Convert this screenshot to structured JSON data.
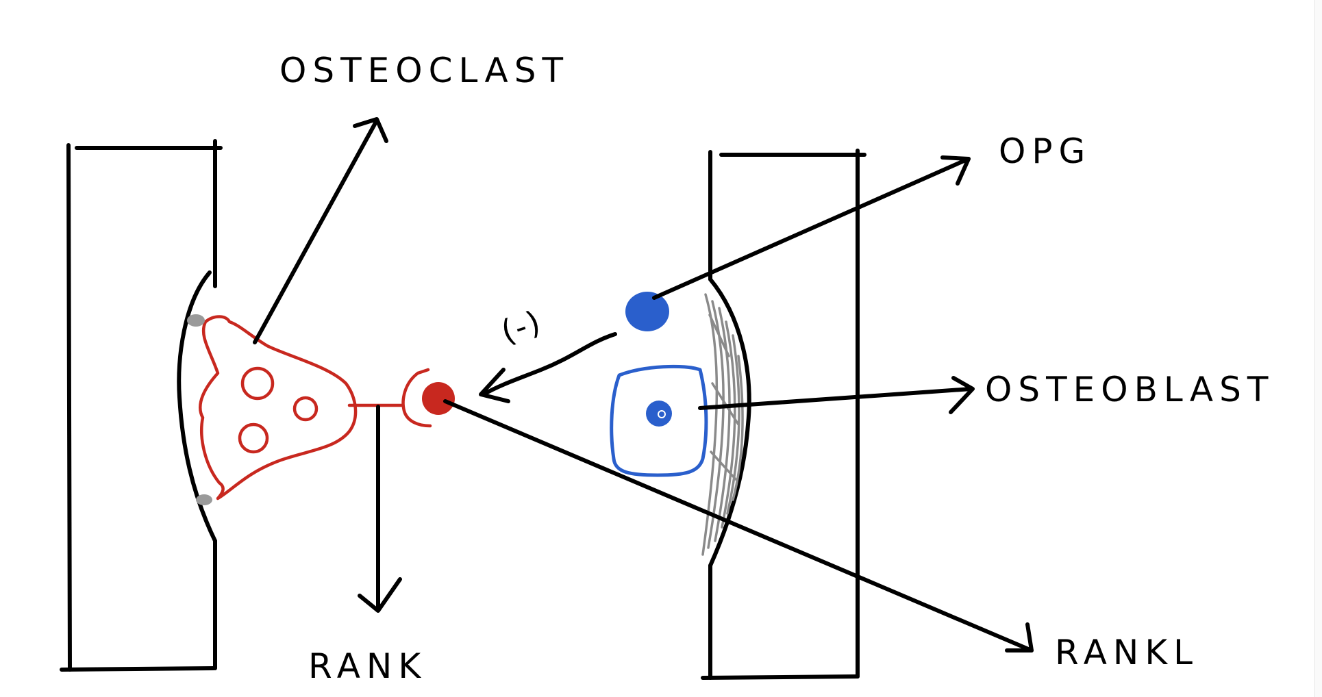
{
  "labels": {
    "osteoclast": "OSTEOCLAST",
    "opg": "OPG",
    "osteoblast": "OSTEOBLAST",
    "rank": "RANK",
    "rankl": "RANKL",
    "inhibition": "(-)"
  },
  "colors": {
    "ink": "#000000",
    "osteoclast": "#c8281f",
    "osteoblast": "#2a5fcc",
    "bone_edge": "#8a8a8a"
  }
}
